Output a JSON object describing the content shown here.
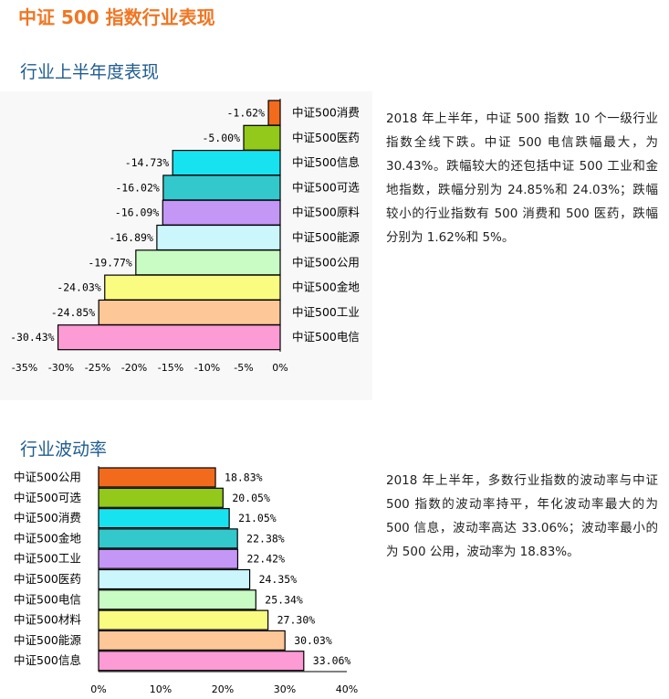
{
  "page": {
    "title": "中证 500 指数行业表现",
    "section1_title": "行业上半年度表现",
    "section1_text": "2018 年上半年，中证 500 指数 10 个一级行业指数全线下跌。中证 500 电信跌幅最大，为 30.43%。跌幅较大的还包括中证 500 工业和金地指数，跌幅分别为 24.85%和 24.03%；跌幅较小的行业指数有 500 消费和 500 医药，跌幅分别为 1.62%和 5%。",
    "section2_title": "行业波动率",
    "section2_text": "2018 年上半年，多数行业指数的波动率与中证 500 指数的波动率持平，年化波动率最大的为 500 信息，波动率高达 33.06%；波动率最小的为 500 公用，波动率为 18.83%。"
  },
  "chart_data": [
    {
      "type": "bar",
      "orientation": "horizontal",
      "categories": [
        "中证500消费",
        "中证500医药",
        "中证500信息",
        "中证500可选",
        "中证500原料",
        "中证500能源",
        "中证500公用",
        "中证500金地",
        "中证500工业",
        "中证500电信"
      ],
      "values": [
        -1.62,
        -5.0,
        -14.73,
        -16.02,
        -16.09,
        -16.89,
        -19.77,
        -24.03,
        -24.85,
        -30.43
      ],
      "labels": [
        "-1.62%",
        "-5.00%",
        "-14.73%",
        "-16.02%",
        "-16.09%",
        "-16.89%",
        "-19.77%",
        "-24.03%",
        "-24.85%",
        "-30.43%"
      ],
      "colors": [
        "#f26b1d",
        "#92c91b",
        "#17e3f0",
        "#33c8cc",
        "#c496f5",
        "#caf6fc",
        "#c9fcc4",
        "#fafc82",
        "#fdc797",
        "#fd9bd5"
      ],
      "xlim": [
        -35,
        0
      ],
      "xticks": [
        "-35%",
        "-30%",
        "-25%",
        "-20%",
        "-15%",
        "-10%",
        "-5%",
        "0%"
      ],
      "grid": false,
      "background": "#f8f8f8"
    },
    {
      "type": "bar",
      "orientation": "horizontal",
      "categories": [
        "中证500公用",
        "中证500可选",
        "中证500消费",
        "中证500金地",
        "中证500工业",
        "中证500医药",
        "中证500电信",
        "中证500材料",
        "中证500能源",
        "中证500信息"
      ],
      "values": [
        18.83,
        20.05,
        21.05,
        22.38,
        22.42,
        24.35,
        25.34,
        27.3,
        30.03,
        33.06
      ],
      "labels": [
        "18.83%",
        "20.05%",
        "21.05%",
        "22.38%",
        "22.42%",
        "24.35%",
        "25.34%",
        "27.30%",
        "30.03%",
        "33.06%"
      ],
      "colors": [
        "#f26b1d",
        "#92c91b",
        "#17e3f0",
        "#33c8cc",
        "#c496f5",
        "#caf6fc",
        "#c9fcc4",
        "#fafc82",
        "#fdc797",
        "#fd9bd5"
      ],
      "xlim": [
        0,
        40
      ],
      "xticks": [
        "0%",
        "10%",
        "20%",
        "30%",
        "40%"
      ],
      "grid": false
    }
  ]
}
